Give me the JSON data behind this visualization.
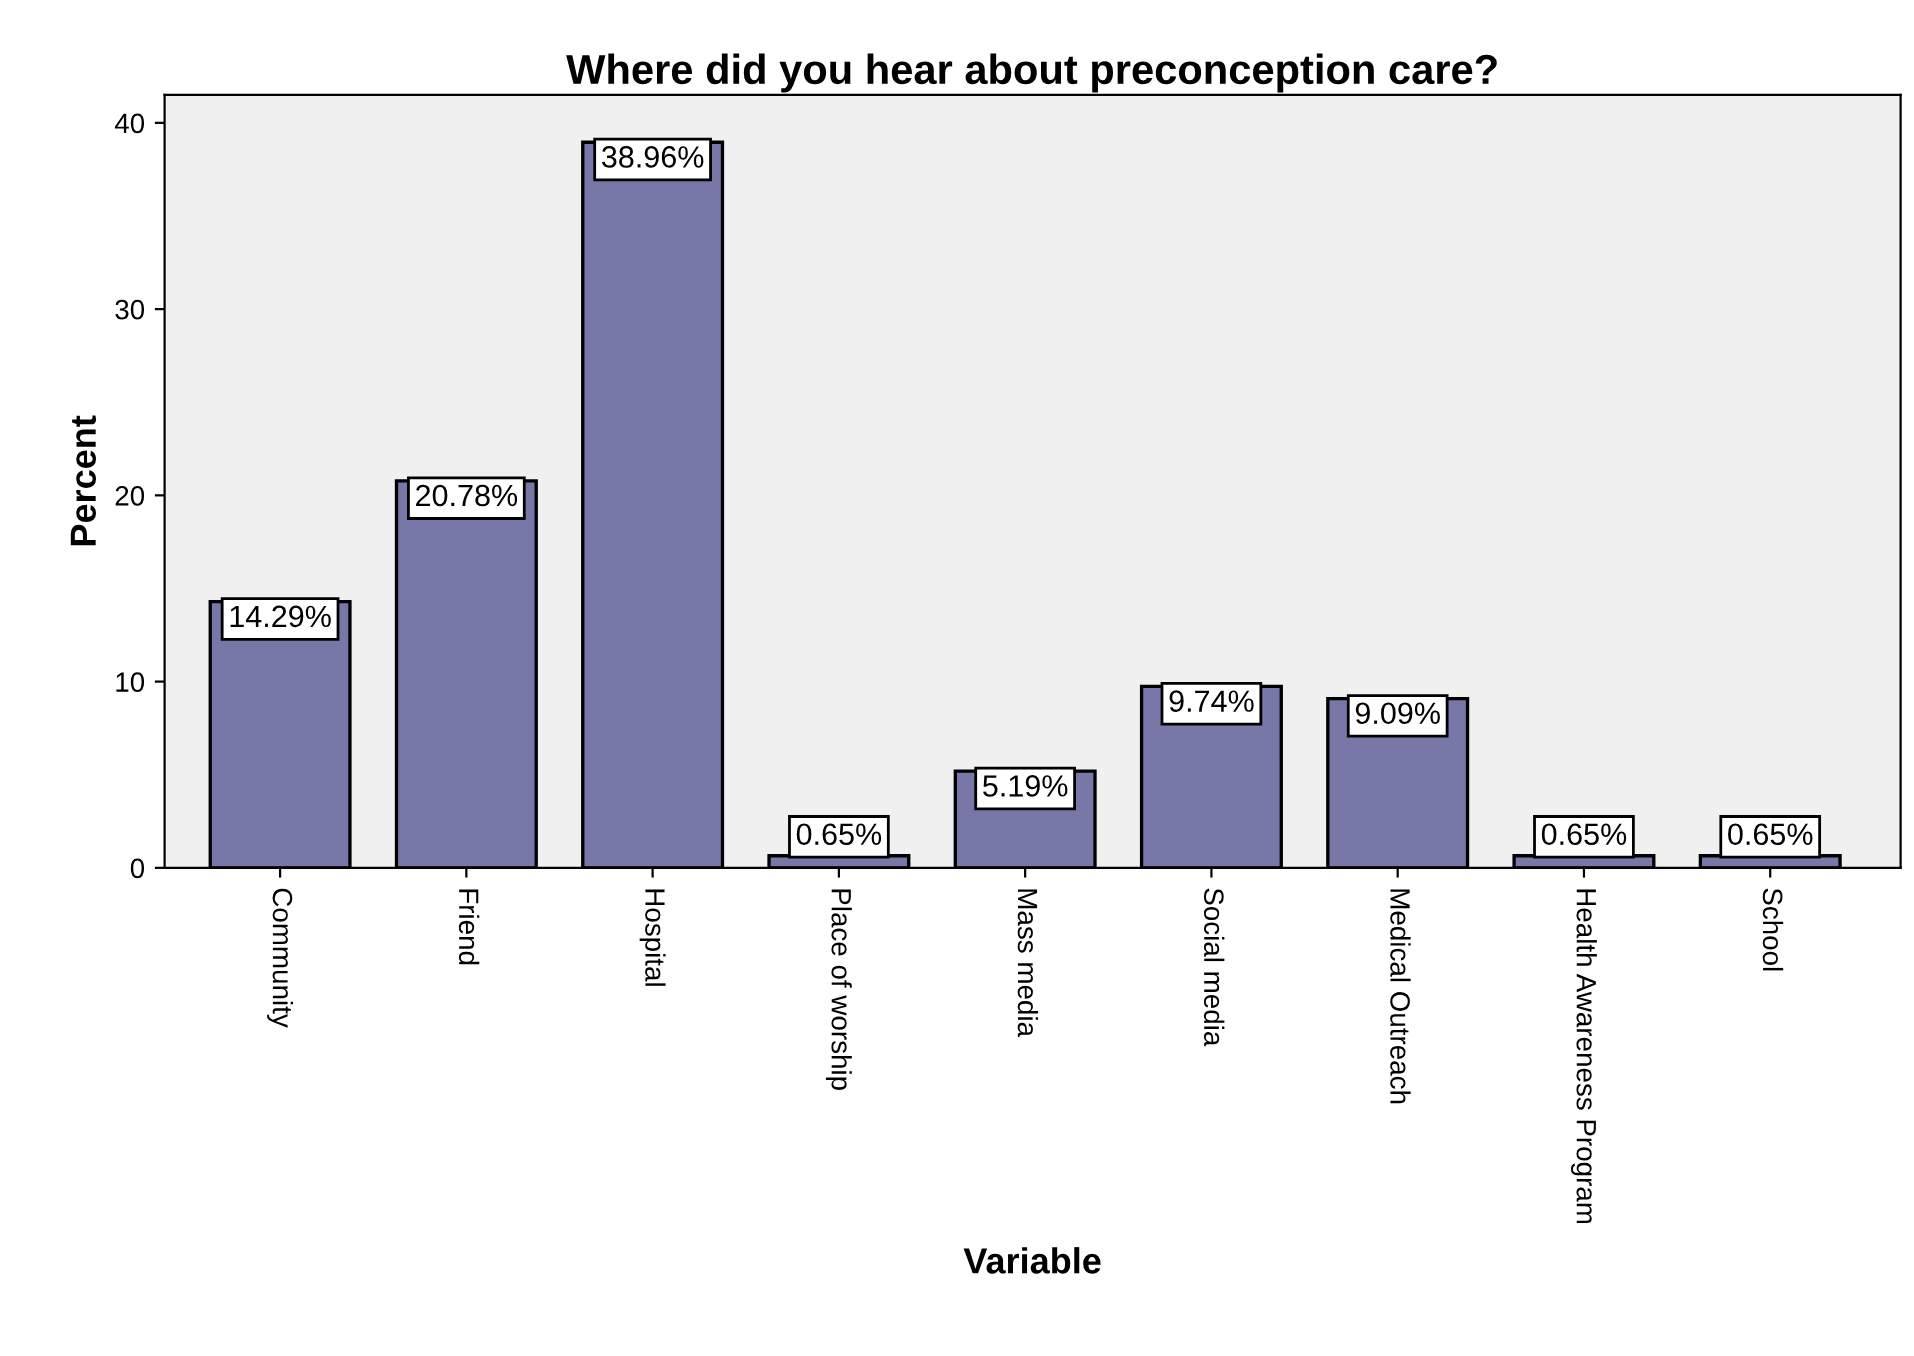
{
  "chart_data": {
    "type": "bar",
    "title": "Where did you hear about preconception care?",
    "xlabel": "Variable",
    "ylabel": "Percent",
    "categories": [
      "Community",
      "Friend",
      "Hospital",
      "Place of worship",
      "Mass media",
      "Social media",
      "Medical Outreach",
      "Health Awareness Program",
      "School"
    ],
    "values": [
      14.29,
      20.78,
      38.96,
      0.65,
      5.19,
      9.74,
      9.09,
      0.65,
      0.65
    ],
    "value_labels": [
      "14.29%",
      "20.78%",
      "38.96%",
      "0.65%",
      "5.19%",
      "9.74%",
      "9.09%",
      "0.65%",
      "0.65%"
    ],
    "color": "#7878a8",
    "ylim": [
      0,
      41.5
    ],
    "yticks": [
      0,
      10,
      20,
      30,
      40
    ],
    "grid": false,
    "legend": false
  }
}
